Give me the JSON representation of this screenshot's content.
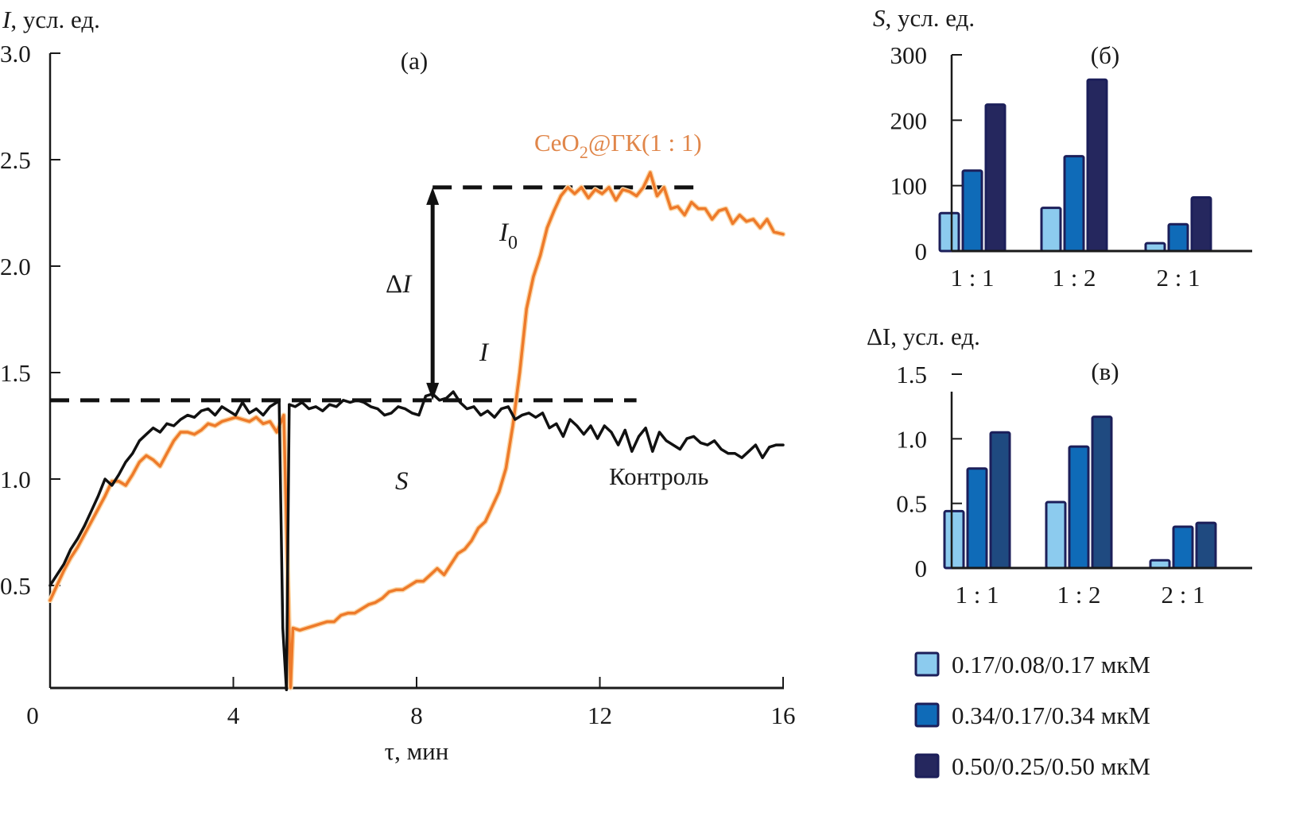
{
  "chart_data": [
    {
      "id": "a",
      "type": "line",
      "panel_label": "(а)",
      "ylabel_symbol": "I",
      "ylabel_rest": ", усл. ед.",
      "xlabel": "τ, мин",
      "xlim": [
        0,
        16
      ],
      "ylim": [
        0,
        3.0
      ],
      "xticks": [
        0,
        4,
        8,
        12,
        16
      ],
      "xtick_labels": [
        "0",
        "4",
        "8",
        "12",
        "16"
      ],
      "yticks": [
        0.5,
        1.0,
        1.5,
        2.0,
        2.5,
        3.0
      ],
      "ytick_labels": [
        "0.5",
        "1.0",
        "1.5",
        "2.0",
        "2.5",
        "3.0"
      ],
      "grid": false,
      "series": [
        {
          "name": "Контроль",
          "color": "#111111",
          "x": [
            0,
            0.15,
            0.3,
            0.45,
            0.6,
            0.75,
            0.9,
            1.05,
            1.2,
            1.35,
            1.5,
            1.65,
            1.8,
            1.95,
            2.1,
            2.25,
            2.4,
            2.55,
            2.7,
            2.85,
            3.0,
            3.15,
            3.3,
            3.45,
            3.6,
            3.75,
            3.9,
            4.05,
            4.2,
            4.35,
            4.5,
            4.65,
            4.8,
            4.95,
            5.0,
            5.08,
            5.16,
            5.22,
            5.35,
            5.5,
            5.65,
            5.8,
            5.95,
            6.1,
            6.25,
            6.4,
            6.55,
            6.7,
            6.85,
            7.0,
            7.15,
            7.3,
            7.45,
            7.6,
            7.75,
            7.9,
            8.05,
            8.2,
            8.35,
            8.5,
            8.65,
            8.8,
            8.95,
            9.1,
            9.25,
            9.4,
            9.55,
            9.7,
            9.85,
            10.0,
            10.15,
            10.3,
            10.45,
            10.6,
            10.75,
            10.9,
            11.05,
            11.2,
            11.35,
            11.5,
            11.65,
            11.8,
            11.95,
            12.1,
            12.25,
            12.4,
            12.55,
            12.7,
            12.85,
            13.0,
            13.15,
            13.3,
            13.45,
            13.6,
            13.75,
            13.9,
            14.05,
            14.2,
            14.35,
            14.5,
            14.65,
            14.8,
            14.95,
            15.1,
            15.25,
            15.4,
            15.55,
            15.7,
            15.85,
            16.0
          ],
          "y": [
            0.5,
            0.55,
            0.6,
            0.67,
            0.72,
            0.78,
            0.85,
            0.92,
            1.0,
            0.97,
            1.02,
            1.08,
            1.12,
            1.18,
            1.21,
            1.24,
            1.22,
            1.26,
            1.25,
            1.28,
            1.3,
            1.29,
            1.32,
            1.33,
            1.3,
            1.34,
            1.32,
            1.3,
            1.36,
            1.31,
            1.33,
            1.3,
            1.34,
            1.36,
            1.37,
            0.3,
            0.01,
            1.35,
            1.34,
            1.36,
            1.33,
            1.34,
            1.32,
            1.35,
            1.34,
            1.37,
            1.36,
            1.37,
            1.36,
            1.34,
            1.33,
            1.3,
            1.31,
            1.34,
            1.33,
            1.31,
            1.3,
            1.39,
            1.4,
            1.37,
            1.38,
            1.41,
            1.36,
            1.33,
            1.34,
            1.3,
            1.32,
            1.29,
            1.33,
            1.34,
            1.28,
            1.3,
            1.31,
            1.29,
            1.31,
            1.24,
            1.26,
            1.2,
            1.28,
            1.25,
            1.21,
            1.25,
            1.19,
            1.25,
            1.22,
            1.16,
            1.23,
            1.13,
            1.2,
            1.24,
            1.13,
            1.22,
            1.18,
            1.16,
            1.14,
            1.19,
            1.2,
            1.17,
            1.16,
            1.18,
            1.14,
            1.12,
            1.12,
            1.1,
            1.13,
            1.16,
            1.1,
            1.15,
            1.16,
            1.16
          ]
        },
        {
          "name": "CeO₂@ГК(1 : 1)",
          "color": "#ee7a2a",
          "x": [
            0,
            0.15,
            0.3,
            0.45,
            0.6,
            0.75,
            0.9,
            1.05,
            1.2,
            1.35,
            1.5,
            1.65,
            1.8,
            1.95,
            2.1,
            2.25,
            2.4,
            2.55,
            2.7,
            2.85,
            3.0,
            3.15,
            3.3,
            3.45,
            3.6,
            3.75,
            3.9,
            4.05,
            4.2,
            4.35,
            4.5,
            4.65,
            4.8,
            4.95,
            5.1,
            5.25,
            5.3,
            5.45,
            5.6,
            5.75,
            5.9,
            6.05,
            6.2,
            6.35,
            6.5,
            6.65,
            6.8,
            6.95,
            7.1,
            7.25,
            7.4,
            7.55,
            7.7,
            7.85,
            8.0,
            8.15,
            8.3,
            8.45,
            8.6,
            8.75,
            8.9,
            9.05,
            9.2,
            9.35,
            9.5,
            9.65,
            9.8,
            9.95,
            10.1,
            10.25,
            10.4,
            10.55,
            10.7,
            10.85,
            11.0,
            11.15,
            11.3,
            11.45,
            11.6,
            11.75,
            11.9,
            12.05,
            12.2,
            12.35,
            12.5,
            12.65,
            12.8,
            12.95,
            13.1,
            13.25,
            13.4,
            13.55,
            13.7,
            13.85,
            14.0,
            14.15,
            14.3,
            14.45,
            14.6,
            14.75,
            14.9,
            15.05,
            15.2,
            15.35,
            15.5,
            15.65,
            15.8,
            16.0
          ],
          "y": [
            0.43,
            0.5,
            0.57,
            0.63,
            0.68,
            0.74,
            0.8,
            0.86,
            0.92,
            0.99,
            0.99,
            0.97,
            1.02,
            1.08,
            1.11,
            1.09,
            1.06,
            1.12,
            1.18,
            1.22,
            1.22,
            1.21,
            1.23,
            1.26,
            1.25,
            1.27,
            1.28,
            1.29,
            1.28,
            1.27,
            1.29,
            1.26,
            1.27,
            1.22,
            1.3,
            0.02,
            0.3,
            0.29,
            0.3,
            0.31,
            0.32,
            0.33,
            0.33,
            0.36,
            0.37,
            0.37,
            0.39,
            0.41,
            0.42,
            0.44,
            0.47,
            0.48,
            0.48,
            0.5,
            0.52,
            0.52,
            0.55,
            0.58,
            0.55,
            0.6,
            0.65,
            0.67,
            0.71,
            0.77,
            0.8,
            0.87,
            0.94,
            1.05,
            1.25,
            1.5,
            1.8,
            1.95,
            2.05,
            2.18,
            2.26,
            2.33,
            2.37,
            2.34,
            2.37,
            2.32,
            2.36,
            2.34,
            2.37,
            2.31,
            2.36,
            2.35,
            2.33,
            2.37,
            2.44,
            2.33,
            2.37,
            2.27,
            2.28,
            2.24,
            2.3,
            2.27,
            2.27,
            2.22,
            2.26,
            2.27,
            2.2,
            2.24,
            2.21,
            2.22,
            2.18,
            2.22,
            2.16,
            2.15
          ]
        }
      ],
      "reference_lines": [
        {
          "name": "I",
          "y": 1.37,
          "x_range": [
            0,
            12.8
          ],
          "style": "dashed"
        },
        {
          "name": "I0",
          "y": 2.37,
          "x_range": [
            8.35,
            14.2
          ],
          "style": "dashed"
        }
      ],
      "annotations": [
        {
          "text": "ΔI",
          "type": "double-arrow",
          "x": 8.35,
          "y_range": [
            1.37,
            2.37
          ]
        },
        {
          "text": "I",
          "subscript": "0",
          "x": 9.9,
          "y": 2.12
        },
        {
          "text": "I",
          "subscript": "",
          "x": 9.6,
          "y": 1.55
        },
        {
          "text": "S",
          "subscript": "",
          "x": 8.1,
          "y": 0.95
        },
        {
          "text": "ΔI",
          "subscript": "",
          "x": 7.4,
          "y": 1.78
        }
      ],
      "series_labels": {
        "orange_main": "CeO",
        "orange_sub": "2",
        "orange_rest": "@ГК(1 : 1)",
        "black": "Контроль"
      }
    },
    {
      "id": "b",
      "type": "bar",
      "panel_label": "(б)",
      "ylabel_symbol": "S",
      "ylabel_rest": ", усл. ед.",
      "categories": [
        "1 : 1",
        "1 : 2",
        "2 : 1"
      ],
      "ylim": [
        0,
        300
      ],
      "yticks": [
        0,
        100,
        200,
        300
      ],
      "ytick_labels": [
        "0",
        "100",
        "200",
        "300"
      ],
      "series": [
        {
          "name": "0.17/0.08/0.17 мкМ",
          "values": [
            58,
            66,
            12
          ]
        },
        {
          "name": "0.34/0.17/0.34 мкМ",
          "values": [
            123,
            145,
            41
          ]
        },
        {
          "name": "0.50/0.25/0.50 мкМ",
          "values": [
            224,
            262,
            82
          ]
        }
      ]
    },
    {
      "id": "c",
      "type": "bar",
      "panel_label": "(в)",
      "ylabel_symbol": "ΔI",
      "ylabel_rest": ", усл. ед.",
      "categories": [
        "1 : 1",
        "1 : 2",
        "2 : 1"
      ],
      "ylim": [
        0,
        1.5
      ],
      "yticks": [
        0,
        0.5,
        1.0,
        1.5
      ],
      "ytick_labels": [
        "0",
        "0.5",
        "1.0",
        "1.5"
      ],
      "series": [
        {
          "name": "0.17/0.08/0.17 мкМ",
          "values": [
            0.44,
            0.51,
            0.06
          ]
        },
        {
          "name": "0.34/0.17/0.34 мкМ",
          "values": [
            0.77,
            0.94,
            0.32
          ]
        },
        {
          "name": "0.50/0.25/0.50 мкМ",
          "values": [
            1.05,
            1.17,
            0.35
          ]
        }
      ]
    }
  ],
  "legend": {
    "placement": "bottom-right",
    "items": [
      {
        "label": "0.17/0.08/0.17 мкМ",
        "color": "#8ccbee"
      },
      {
        "label": "0.34/0.17/0.34 мкМ",
        "color": "#0f6bb8"
      },
      {
        "label": "0.50/0.25/0.50 мкМ",
        "color": "#25275e"
      }
    ]
  },
  "colors": {
    "control": "#111111",
    "ceo2": "#ee7a2a",
    "ceo2_label": "#e0864a",
    "bar_outline": "#1c1f5a",
    "bars_c_dark": "#1f4a80"
  }
}
